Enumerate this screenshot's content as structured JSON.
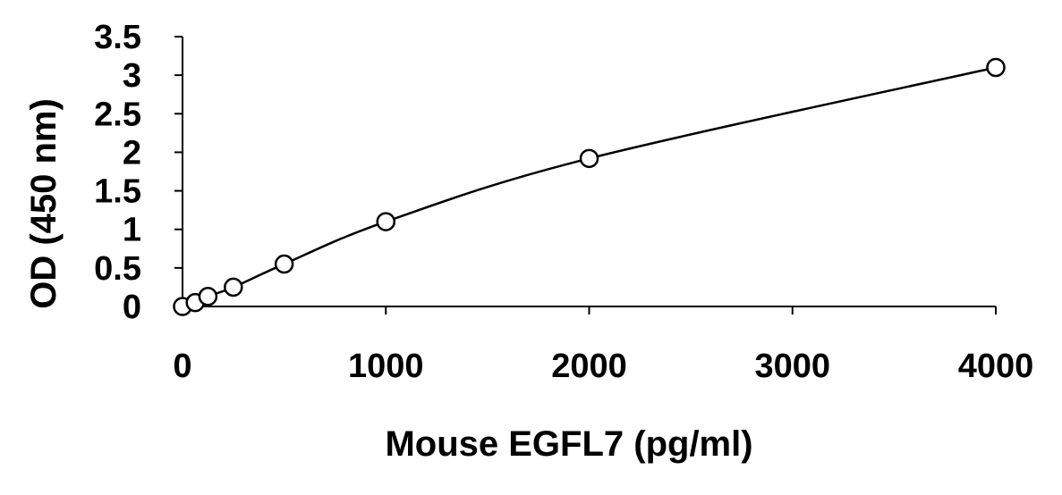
{
  "chart_data": {
    "type": "scatter",
    "title": "",
    "xlabel": "Mouse EGFL7 (pg/ml)",
    "ylabel": "OD (450 nm)",
    "xlim": [
      0,
      4000
    ],
    "ylim": [
      0,
      3.5
    ],
    "x_ticks": [
      0,
      1000,
      2000,
      3000,
      4000
    ],
    "y_ticks": [
      0,
      0.5,
      1,
      1.5,
      2,
      2.5,
      3,
      3.5
    ],
    "x_tick_labels": [
      "0",
      "1000",
      "2000",
      "3000",
      "4000"
    ],
    "y_tick_labels": [
      "0",
      "0.5",
      "1",
      "1.5",
      "2",
      "2.5",
      "3",
      "3.5"
    ],
    "grid": false,
    "legend": "none",
    "trendline": "smooth curve through points",
    "series": [
      {
        "x": [
          0,
          62.5,
          125,
          250,
          500,
          1000,
          2000,
          4000
        ],
        "y": [
          0.0,
          0.05,
          0.13,
          0.25,
          0.55,
          1.1,
          1.92,
          3.1
        ]
      }
    ]
  }
}
